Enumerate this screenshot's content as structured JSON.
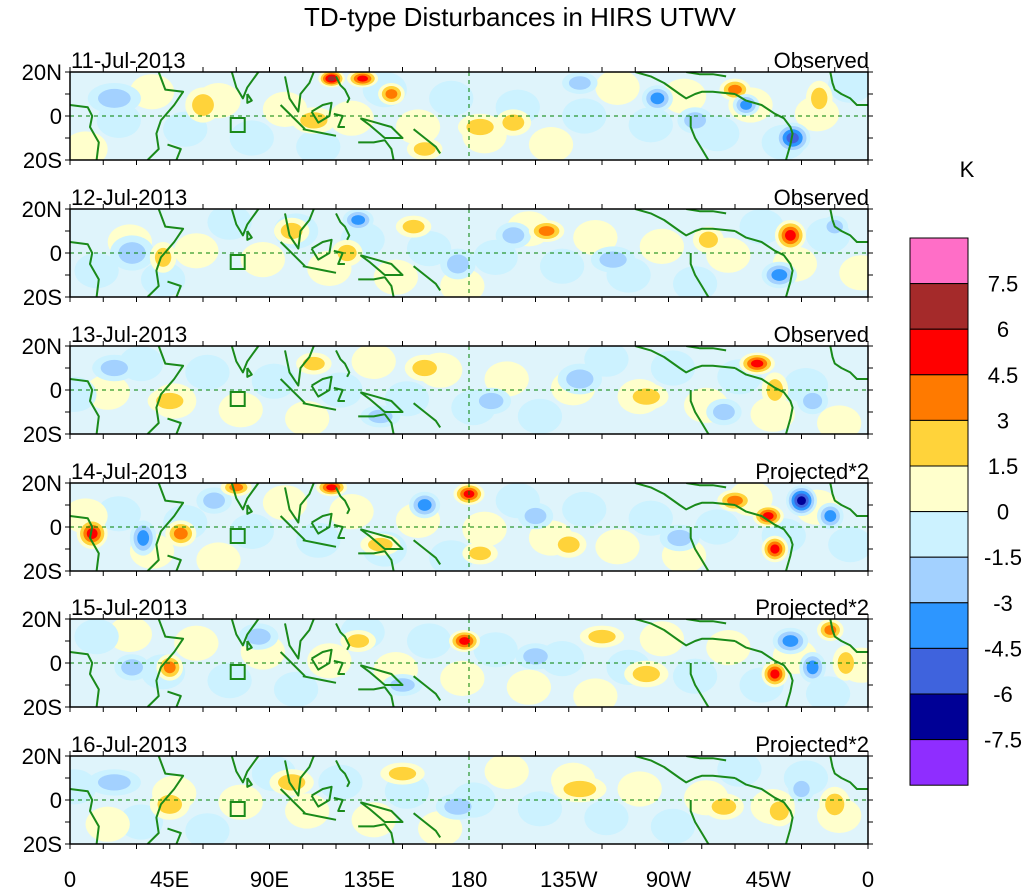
{
  "chart_data": {
    "type": "heatmap",
    "title": "TD-type Disturbances in HIRS UTWV",
    "colorbar": {
      "unit": "K",
      "levels": [
        "7.5",
        "6",
        "4.5",
        "3",
        "1.5",
        "0",
        "-1.5",
        "-3",
        "-4.5",
        "-6",
        "-7.5"
      ],
      "colors": [
        "#ff6ec7",
        "#a52a2a",
        "#ff0000",
        "#ff7a00",
        "#ffd33a",
        "#ffffcc",
        "#ccf2ff",
        "#a3d1ff",
        "#2d96ff",
        "#3f63dd",
        "#000096",
        "#8f2dff"
      ]
    },
    "lat_labels": [
      "20N",
      "0",
      "20S"
    ],
    "lon_labels": [
      "0",
      "45E",
      "90E",
      "135E",
      "180",
      "135W",
      "90W",
      "45W",
      "0"
    ],
    "panels": [
      {
        "date": "11-Jul-2013",
        "label": "Observed"
      },
      {
        "date": "12-Jul-2013",
        "label": "Observed"
      },
      {
        "date": "13-Jul-2013",
        "label": "Observed"
      },
      {
        "date": "14-Jul-2013",
        "label": "Projected*2"
      },
      {
        "date": "15-Jul-2013",
        "label": "Projected*2"
      },
      {
        "date": "16-Jul-2013",
        "label": "Projected*2"
      }
    ],
    "anomalies": [
      [
        {
          "lon": 118,
          "lat": 17,
          "v": 7,
          "rx": 6,
          "ry": 4
        },
        {
          "lon": 132,
          "lat": 17,
          "v": 5,
          "rx": 7,
          "ry": 4
        },
        {
          "lon": 145,
          "lat": 10,
          "v": 4.5,
          "rx": 6,
          "ry": 5
        },
        {
          "lon": 185,
          "lat": -5,
          "v": 3,
          "rx": 10,
          "ry": 6
        },
        {
          "lon": 200,
          "lat": -3,
          "v": 2,
          "rx": 8,
          "ry": 6
        },
        {
          "lon": 265,
          "lat": 8,
          "v": -4.5,
          "rx": 7,
          "ry": 6
        },
        {
          "lon": 282,
          "lat": -2,
          "v": -3,
          "rx": 8,
          "ry": 6
        },
        {
          "lon": 300,
          "lat": 12,
          "v": 4,
          "rx": 7,
          "ry": 5
        },
        {
          "lon": 305,
          "lat": 5,
          "v": -4,
          "rx": 6,
          "ry": 5
        },
        {
          "lon": 326,
          "lat": -10,
          "v": -5,
          "rx": 8,
          "ry": 7
        },
        {
          "lon": 338,
          "lat": 8,
          "v": 3,
          "rx": 6,
          "ry": 8
        },
        {
          "lon": 110,
          "lat": -2,
          "v": 2,
          "rx": 10,
          "ry": 6
        },
        {
          "lon": 20,
          "lat": 8,
          "v": -2,
          "rx": 12,
          "ry": 7
        },
        {
          "lon": 60,
          "lat": 5,
          "v": 2,
          "rx": 8,
          "ry": 8
        },
        {
          "lon": 230,
          "lat": 15,
          "v": -2,
          "rx": 8,
          "ry": 5
        },
        {
          "lon": 160,
          "lat": -15,
          "v": 2,
          "rx": 8,
          "ry": 5
        }
      ],
      [
        {
          "lon": 130,
          "lat": 15,
          "v": -4,
          "rx": 7,
          "ry": 5
        },
        {
          "lon": 125,
          "lat": 0,
          "v": 3,
          "rx": 7,
          "ry": 6
        },
        {
          "lon": 155,
          "lat": 12,
          "v": 3,
          "rx": 8,
          "ry": 5
        },
        {
          "lon": 200,
          "lat": 8,
          "v": -3,
          "rx": 8,
          "ry": 6
        },
        {
          "lon": 215,
          "lat": 10,
          "v": 4.5,
          "rx": 8,
          "ry": 5
        },
        {
          "lon": 245,
          "lat": -3,
          "v": -2,
          "rx": 10,
          "ry": 6
        },
        {
          "lon": 288,
          "lat": 6,
          "v": 3,
          "rx": 7,
          "ry": 6
        },
        {
          "lon": 325,
          "lat": 8,
          "v": 5,
          "rx": 7,
          "ry": 7
        },
        {
          "lon": 320,
          "lat": -10,
          "v": -4,
          "rx": 8,
          "ry": 6
        },
        {
          "lon": 345,
          "lat": 12,
          "v": -3,
          "rx": 6,
          "ry": 5
        },
        {
          "lon": 28,
          "lat": 0,
          "v": -2,
          "rx": 10,
          "ry": 8
        },
        {
          "lon": 42,
          "lat": -2,
          "v": 3,
          "rx": 6,
          "ry": 7
        },
        {
          "lon": 100,
          "lat": 10,
          "v": 2,
          "rx": 8,
          "ry": 6
        },
        {
          "lon": 175,
          "lat": -5,
          "v": -2,
          "rx": 8,
          "ry": 7
        }
      ],
      [
        {
          "lon": 160,
          "lat": 10,
          "v": 2.5,
          "rx": 9,
          "ry": 6
        },
        {
          "lon": 190,
          "lat": -5,
          "v": -2.5,
          "rx": 9,
          "ry": 6
        },
        {
          "lon": 230,
          "lat": 5,
          "v": -2,
          "rx": 10,
          "ry": 7
        },
        {
          "lon": 260,
          "lat": -3,
          "v": 2,
          "rx": 10,
          "ry": 6
        },
        {
          "lon": 310,
          "lat": 12,
          "v": 5,
          "rx": 8,
          "ry": 5
        },
        {
          "lon": 318,
          "lat": 0,
          "v": 3,
          "rx": 6,
          "ry": 8
        },
        {
          "lon": 335,
          "lat": -5,
          "v": -3,
          "rx": 7,
          "ry": 6
        },
        {
          "lon": 295,
          "lat": -10,
          "v": -2,
          "rx": 8,
          "ry": 6
        },
        {
          "lon": 45,
          "lat": -5,
          "v": 2,
          "rx": 10,
          "ry": 6
        },
        {
          "lon": 20,
          "lat": 10,
          "v": -2,
          "rx": 10,
          "ry": 6
        },
        {
          "lon": 110,
          "lat": 12,
          "v": 2,
          "rx": 8,
          "ry": 5
        },
        {
          "lon": 140,
          "lat": -12,
          "v": -2,
          "rx": 9,
          "ry": 5
        }
      ],
      [
        {
          "lon": 10,
          "lat": -3,
          "v": 5,
          "rx": 7,
          "ry": 7
        },
        {
          "lon": 33,
          "lat": -5,
          "v": -4,
          "rx": 6,
          "ry": 8
        },
        {
          "lon": 50,
          "lat": -3,
          "v": 4.5,
          "rx": 7,
          "ry": 6
        },
        {
          "lon": 65,
          "lat": 12,
          "v": -3,
          "rx": 8,
          "ry": 6
        },
        {
          "lon": 75,
          "lat": 18,
          "v": 4,
          "rx": 7,
          "ry": 4
        },
        {
          "lon": 118,
          "lat": 18,
          "v": 5,
          "rx": 7,
          "ry": 4
        },
        {
          "lon": 160,
          "lat": 10,
          "v": -4.5,
          "rx": 7,
          "ry": 6
        },
        {
          "lon": 180,
          "lat": 15,
          "v": 5,
          "rx": 7,
          "ry": 5
        },
        {
          "lon": 185,
          "lat": -12,
          "v": 3,
          "rx": 8,
          "ry": 5
        },
        {
          "lon": 210,
          "lat": 5,
          "v": -3,
          "rx": 8,
          "ry": 6
        },
        {
          "lon": 225,
          "lat": -8,
          "v": 3,
          "rx": 8,
          "ry": 6
        },
        {
          "lon": 300,
          "lat": 12,
          "v": 4,
          "rx": 8,
          "ry": 5
        },
        {
          "lon": 315,
          "lat": 5,
          "v": 5,
          "rx": 7,
          "ry": 5
        },
        {
          "lon": 318,
          "lat": -10,
          "v": 6,
          "rx": 6,
          "ry": 6
        },
        {
          "lon": 330,
          "lat": 12,
          "v": -6.5,
          "rx": 7,
          "ry": 7
        },
        {
          "lon": 343,
          "lat": 5,
          "v": -4,
          "rx": 6,
          "ry": 6
        },
        {
          "lon": 275,
          "lat": -5,
          "v": -2,
          "rx": 9,
          "ry": 6
        },
        {
          "lon": 140,
          "lat": -8,
          "v": 2,
          "rx": 9,
          "ry": 5
        }
      ],
      [
        {
          "lon": 28,
          "lat": -2,
          "v": -3,
          "rx": 8,
          "ry": 6
        },
        {
          "lon": 45,
          "lat": -2,
          "v": 4,
          "rx": 6,
          "ry": 6
        },
        {
          "lon": 85,
          "lat": 12,
          "v": -2,
          "rx": 9,
          "ry": 6
        },
        {
          "lon": 178,
          "lat": 10,
          "v": 5,
          "rx": 7,
          "ry": 5
        },
        {
          "lon": 210,
          "lat": 3,
          "v": -2.5,
          "rx": 9,
          "ry": 6
        },
        {
          "lon": 240,
          "lat": 12,
          "v": 2,
          "rx": 10,
          "ry": 5
        },
        {
          "lon": 260,
          "lat": -5,
          "v": 2,
          "rx": 10,
          "ry": 6
        },
        {
          "lon": 318,
          "lat": -5,
          "v": 5,
          "rx": 6,
          "ry": 6
        },
        {
          "lon": 325,
          "lat": 10,
          "v": -4,
          "rx": 8,
          "ry": 6
        },
        {
          "lon": 335,
          "lat": -2,
          "v": -4,
          "rx": 6,
          "ry": 7
        },
        {
          "lon": 343,
          "lat": 15,
          "v": 4,
          "rx": 6,
          "ry": 5
        },
        {
          "lon": 350,
          "lat": 0,
          "v": 3,
          "rx": 6,
          "ry": 8
        },
        {
          "lon": 130,
          "lat": 10,
          "v": 2,
          "rx": 8,
          "ry": 5
        },
        {
          "lon": 150,
          "lat": -10,
          "v": -2,
          "rx": 9,
          "ry": 5
        }
      ],
      [
        {
          "lon": 45,
          "lat": -2,
          "v": 2,
          "rx": 9,
          "ry": 7
        },
        {
          "lon": 100,
          "lat": 8,
          "v": 2,
          "rx": 10,
          "ry": 6
        },
        {
          "lon": 150,
          "lat": 12,
          "v": 2,
          "rx": 10,
          "ry": 5
        },
        {
          "lon": 175,
          "lat": -3,
          "v": -2,
          "rx": 10,
          "ry": 6
        },
        {
          "lon": 230,
          "lat": 5,
          "v": 2,
          "rx": 12,
          "ry": 6
        },
        {
          "lon": 295,
          "lat": -3,
          "v": 2.5,
          "rx": 9,
          "ry": 6
        },
        {
          "lon": 320,
          "lat": -5,
          "v": 3,
          "rx": 7,
          "ry": 7
        },
        {
          "lon": 330,
          "lat": 5,
          "v": -3,
          "rx": 6,
          "ry": 6
        },
        {
          "lon": 345,
          "lat": -2,
          "v": 3,
          "rx": 7,
          "ry": 8
        },
        {
          "lon": 20,
          "lat": 8,
          "v": -2,
          "rx": 12,
          "ry": 6
        }
      ]
    ]
  }
}
